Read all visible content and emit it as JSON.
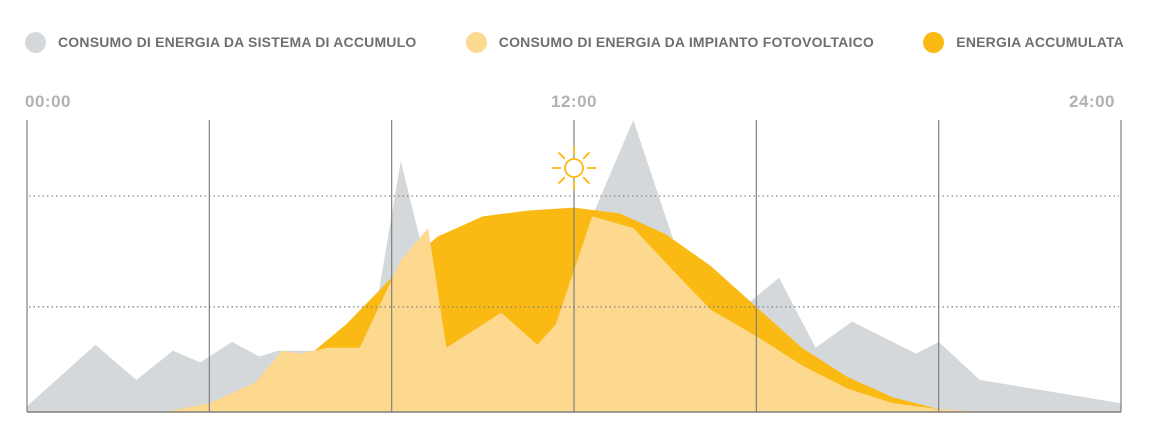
{
  "legend": {
    "items": [
      {
        "label": "CONSUMO DI ENERGIA DA SISTEMA DI ACCUMULO",
        "color": "#d5d8da"
      },
      {
        "label": "CONSUMO DI ENERGIA DA IMPIANTO FOTOVOLTAICO",
        "color": "#fdd98f"
      },
      {
        "label": "ENERGIA ACCUMULATA",
        "color": "#fbb913"
      }
    ]
  },
  "colors": {
    "gridline": "#7f7f7f",
    "tick_text": "#b2b2b2",
    "sun": "#fbb913"
  },
  "chart_data": {
    "type": "area",
    "x_tick_labels": [
      "00:00",
      "12:00",
      "24:00"
    ],
    "x_range": [
      0,
      24
    ],
    "grid": true,
    "legend_position": "top",
    "annotation_icon": "sun-icon",
    "series": [
      {
        "name": "CONSUMO DI ENERGIA DA SISTEMA DI ACCUMULO",
        "color": "#d5d8da",
        "x": [
          0,
          1.5,
          2.4,
          3.2,
          3.8,
          4.5,
          5.1,
          5.5,
          6.3,
          7.5,
          8.2,
          9.2,
          10.2,
          11.2,
          11.6,
          12.4,
          13.3,
          14.2,
          15.1,
          16.5,
          17.3,
          18.1,
          19.5,
          20.0,
          20.9,
          24.0
        ],
        "y": [
          0.02,
          0.23,
          0.11,
          0.21,
          0.17,
          0.24,
          0.19,
          0.21,
          0.21,
          0.21,
          0.86,
          0.22,
          0.32,
          0.23,
          0.3,
          0.67,
          1.0,
          0.58,
          0.28,
          0.46,
          0.22,
          0.31,
          0.2,
          0.24,
          0.11,
          0.03
        ],
        "max_value": 1.0
      },
      {
        "name": "ENERGIA ACCUMULATA",
        "color": "#fbb913",
        "x": [
          3.0,
          4.0,
          5.0,
          6.0,
          7.0,
          8.0,
          9.0,
          10.0,
          11.0,
          12.0,
          13.0,
          14.0,
          15.0,
          16.0,
          17.0,
          18.0,
          19.0,
          20.0,
          21.0
        ],
        "y": [
          0.0,
          0.02,
          0.06,
          0.17,
          0.3,
          0.46,
          0.6,
          0.67,
          0.69,
          0.7,
          0.68,
          0.61,
          0.5,
          0.36,
          0.22,
          0.12,
          0.05,
          0.01,
          0.0
        ],
        "max_value": 0.7
      },
      {
        "name": "CONSUMO DI ENERGIA DA IMPIANTO FOTOVOLTAICO",
        "color": "#fdd98f",
        "x": [
          3.0,
          4.0,
          5.0,
          5.6,
          6.0,
          6.6,
          7.3,
          8.2,
          8.8,
          9.2,
          10.4,
          11.2,
          11.6,
          12.4,
          13.3,
          14.2,
          15.0,
          16.0,
          17.0,
          18.0,
          19.0,
          20.0,
          21.0
        ],
        "y": [
          0.0,
          0.03,
          0.1,
          0.21,
          0.2,
          0.22,
          0.22,
          0.52,
          0.63,
          0.22,
          0.34,
          0.23,
          0.3,
          0.67,
          0.63,
          0.48,
          0.35,
          0.26,
          0.16,
          0.08,
          0.03,
          0.01,
          0.0
        ],
        "max_value": 0.67
      }
    ]
  }
}
